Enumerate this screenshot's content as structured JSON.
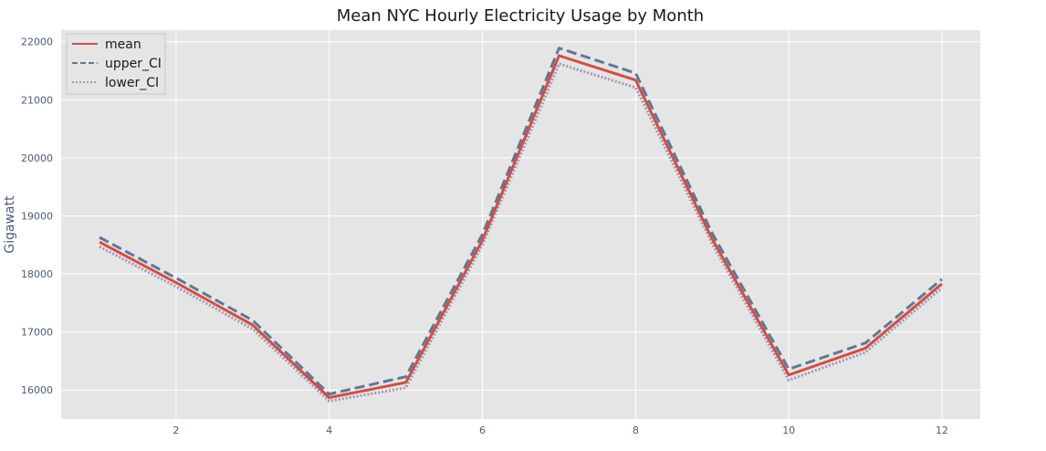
{
  "chart_data": {
    "type": "line",
    "title": "Mean NYC Hourly Electricity Usage by Month",
    "xlabel": "",
    "ylabel": "Gigawatt",
    "x": [
      1,
      2,
      3,
      4,
      5,
      6,
      7,
      8,
      9,
      10,
      11,
      12
    ],
    "xlim": [
      0.5,
      12.5
    ],
    "ylim": [
      15500,
      22200
    ],
    "xticks": [
      2,
      4,
      6,
      8,
      10,
      12
    ],
    "yticks": [
      16000,
      17000,
      18000,
      19000,
      20000,
      21000,
      22000
    ],
    "grid": true,
    "legend_position": "top-left",
    "series": [
      {
        "name": "mean",
        "values": [
          18550,
          17850,
          17120,
          15870,
          16130,
          18580,
          21760,
          21340,
          18600,
          16260,
          16720,
          17830
        ],
        "color": "#cf4f45",
        "style": "solid"
      },
      {
        "name": "upper_CI",
        "values": [
          18630,
          17930,
          17200,
          15930,
          16230,
          18680,
          21890,
          21460,
          18700,
          16360,
          16810,
          17910
        ],
        "color": "#5f7796",
        "style": "dashed"
      },
      {
        "name": "lower_CI",
        "values": [
          18470,
          17780,
          17050,
          15810,
          16040,
          18500,
          21620,
          21210,
          18520,
          16170,
          16650,
          17760
        ],
        "color": "#a994b3",
        "style": "dotted"
      }
    ]
  }
}
